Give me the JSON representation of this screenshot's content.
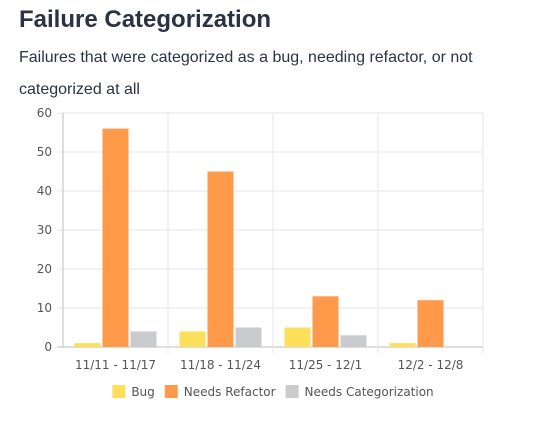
{
  "title": "Failure Categorization",
  "subtitle": "Failures that were categorized as a bug, needing refactor, or not categorized at all",
  "chart_data": {
    "type": "bar",
    "categories": [
      "11/11 - 11/17",
      "11/18 - 11/24",
      "11/25 - 12/1",
      "12/2 - 12/8"
    ],
    "series": [
      {
        "name": "Bug",
        "values": [
          1,
          4,
          5,
          1
        ],
        "color": "#fddf5c"
      },
      {
        "name": "Needs Refactor",
        "values": [
          56,
          45,
          13,
          12
        ],
        "color": "#ff9a4b"
      },
      {
        "name": "Needs Categorization",
        "values": [
          4,
          5,
          3,
          0
        ],
        "color": "#c9cbcf"
      }
    ],
    "ylim": [
      0,
      60
    ],
    "yticks": [
      0,
      10,
      20,
      30,
      40,
      50,
      60
    ],
    "grid": true,
    "legend": "bottom"
  }
}
